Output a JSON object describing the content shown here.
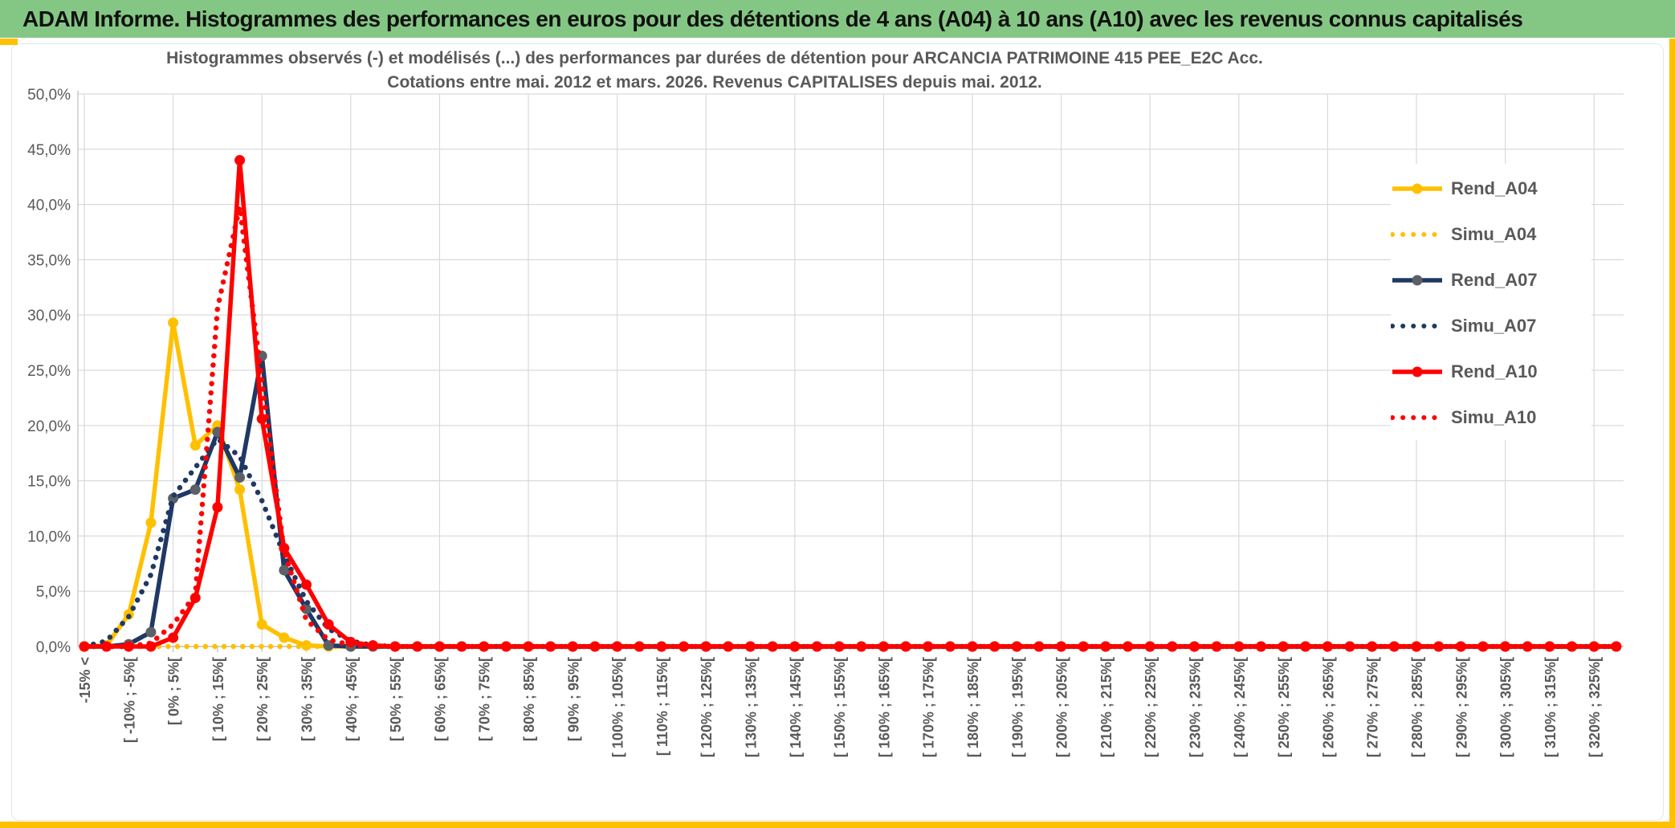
{
  "header": {
    "title": "ADAM Informe. Histogrammes des performances en euros pour des détentions de 4 ans (A04) à 10 ans (A10) avec les revenus connus capitalisés"
  },
  "chart": {
    "title_line1": "Histogrammes observés (-) et modélisés (...) des performances par durées de détention pour ARCANCIA PATRIMOINE 415 PEE_E2C Acc.",
    "title_line2": "Cotations entre mai. 2012 et mars. 2026. Revenus CAPITALISES depuis mai. 2012."
  },
  "colors": {
    "header_green": "#84C784",
    "accent_gold": "#FFC000",
    "navy": "#1F3864",
    "red": "#FF0000",
    "text_gray": "#595959",
    "gridline": "#D9D9D9",
    "axis_line": "#BFBFBF",
    "a07_marker_gray": "#5B6069"
  },
  "chart_data": {
    "type": "line",
    "title": "Histogrammes observés (-) et modélisés (...) des performances par durées de détention pour ARCANCIA PATRIMOINE 415 PEE_E2C Acc. Cotations entre mai. 2012 et mars. 2026. Revenus CAPITALISES depuis mai. 2012.",
    "ylabel": "",
    "xlabel": "",
    "ylim": [
      0,
      50
    ],
    "grid": true,
    "legend_position": "right-inside",
    "y_tick_labels": [
      "0,0%",
      "5,0%",
      "10,0%",
      "15,0%",
      "20,0%",
      "25,0%",
      "30,0%",
      "35,0%",
      "40,0%",
      "45,0%",
      "50,0%"
    ],
    "bins_total": 70,
    "bin_width_pct": 5,
    "x_tick_label_every_bins": 2,
    "x_tick_labels": [
      "-15% <",
      "[ -10% ; -5%[",
      "[ 0% ; 5%[",
      "[ 10% ; 15%[",
      "[ 20% ; 25%[",
      "[ 30% ; 35%[",
      "[ 40% ; 45%[",
      "[ 50% ; 55%[",
      "[ 60% ; 65%[",
      "[ 70% ; 75%[",
      "[ 80% ; 85%[",
      "[ 90% ; 95%[",
      "[ 100% ; 105%[",
      "[ 110% ; 115%[",
      "[ 120% ; 125%[",
      "[ 130% ; 135%[",
      "[ 140% ; 145%[",
      "[ 150% ; 155%[",
      "[ 160% ; 165%[",
      "[ 170% ; 175%[",
      "[ 180% ; 185%[",
      "[ 190% ; 195%[",
      "[ 200% ; 205%[",
      "[ 210% ; 215%[",
      "[ 220% ; 225%[",
      "[ 230% ; 235%[",
      "[ 240% ; 245%[",
      "[ 250% ; 255%[",
      "[ 260% ; 265%[",
      "[ 270% ; 275%[",
      "[ 280% ; 285%[",
      "[ 290% ; 295%[",
      "[ 300% ; 305%[",
      "[ 310% ; 315%[",
      "[ 320% ; 325%["
    ],
    "series": [
      {
        "name": "Rend_A04",
        "style": "solid",
        "color": "#FFC000",
        "marker": true,
        "marker_color": "#FFC000",
        "values_pct_by_bin": {
          "1": 0.1,
          "2": 2.9,
          "3": 11.2,
          "4": 29.3,
          "5": 18.2,
          "6": 20.0,
          "7": 14.2,
          "8": 2.0,
          "9": 0.8,
          "10": 0.1
        },
        "default_value": 0
      },
      {
        "name": "Simu_A04",
        "style": "dotted",
        "color": "#FFC000",
        "marker": false,
        "values_pct_by_bin": {},
        "default_value": 0
      },
      {
        "name": "Rend_A07",
        "style": "solid",
        "color": "#1F3864",
        "marker": true,
        "marker_color": "#5B6069",
        "values_pct_by_bin": {
          "2": 0.2,
          "3": 1.3,
          "4": 13.4,
          "5": 14.2,
          "6": 19.4,
          "7": 15.3,
          "8": 26.3,
          "9": 6.9,
          "10": 3.4,
          "11": 0.1
        },
        "default_value": 0
      },
      {
        "name": "Simu_A07",
        "style": "dotted",
        "color": "#1F3864",
        "marker": false,
        "values_pct_by_bin": {
          "1": 0.5,
          "2": 2.7,
          "3": 6.5,
          "4": 13.6,
          "5": 16.2,
          "6": 18.8,
          "7": 17.2,
          "8": 13.2,
          "9": 8.3,
          "10": 4.1,
          "11": 1.6,
          "12": 0.5,
          "13": 0.1
        },
        "default_value": 0
      },
      {
        "name": "Rend_A10",
        "style": "solid",
        "color": "#FF0000",
        "marker": true,
        "marker_color": "#FF0000",
        "values_pct_by_bin": {
          "4": 0.8,
          "5": 4.4,
          "6": 12.6,
          "7": 44.0,
          "8": 20.6,
          "9": 8.9,
          "10": 5.6,
          "11": 2.0,
          "12": 0.4,
          "13": 0.1
        },
        "default_value": 0
      },
      {
        "name": "Simu_A10",
        "style": "dotted",
        "color": "#FF0000",
        "marker": false,
        "values_pct_by_bin": {
          "3": 0.3,
          "4": 2.0,
          "5": 4.7,
          "6": 30.6,
          "7": 39.8,
          "8": 24.0,
          "9": 8.6,
          "10": 2.4,
          "11": 0.6,
          "12": 0.15
        },
        "default_value": 0
      }
    ],
    "legend_entries": [
      "Rend_A04",
      "Simu_A04",
      "Rend_A07",
      "Simu_A07",
      "Rend_A10",
      "Simu_A10"
    ]
  }
}
